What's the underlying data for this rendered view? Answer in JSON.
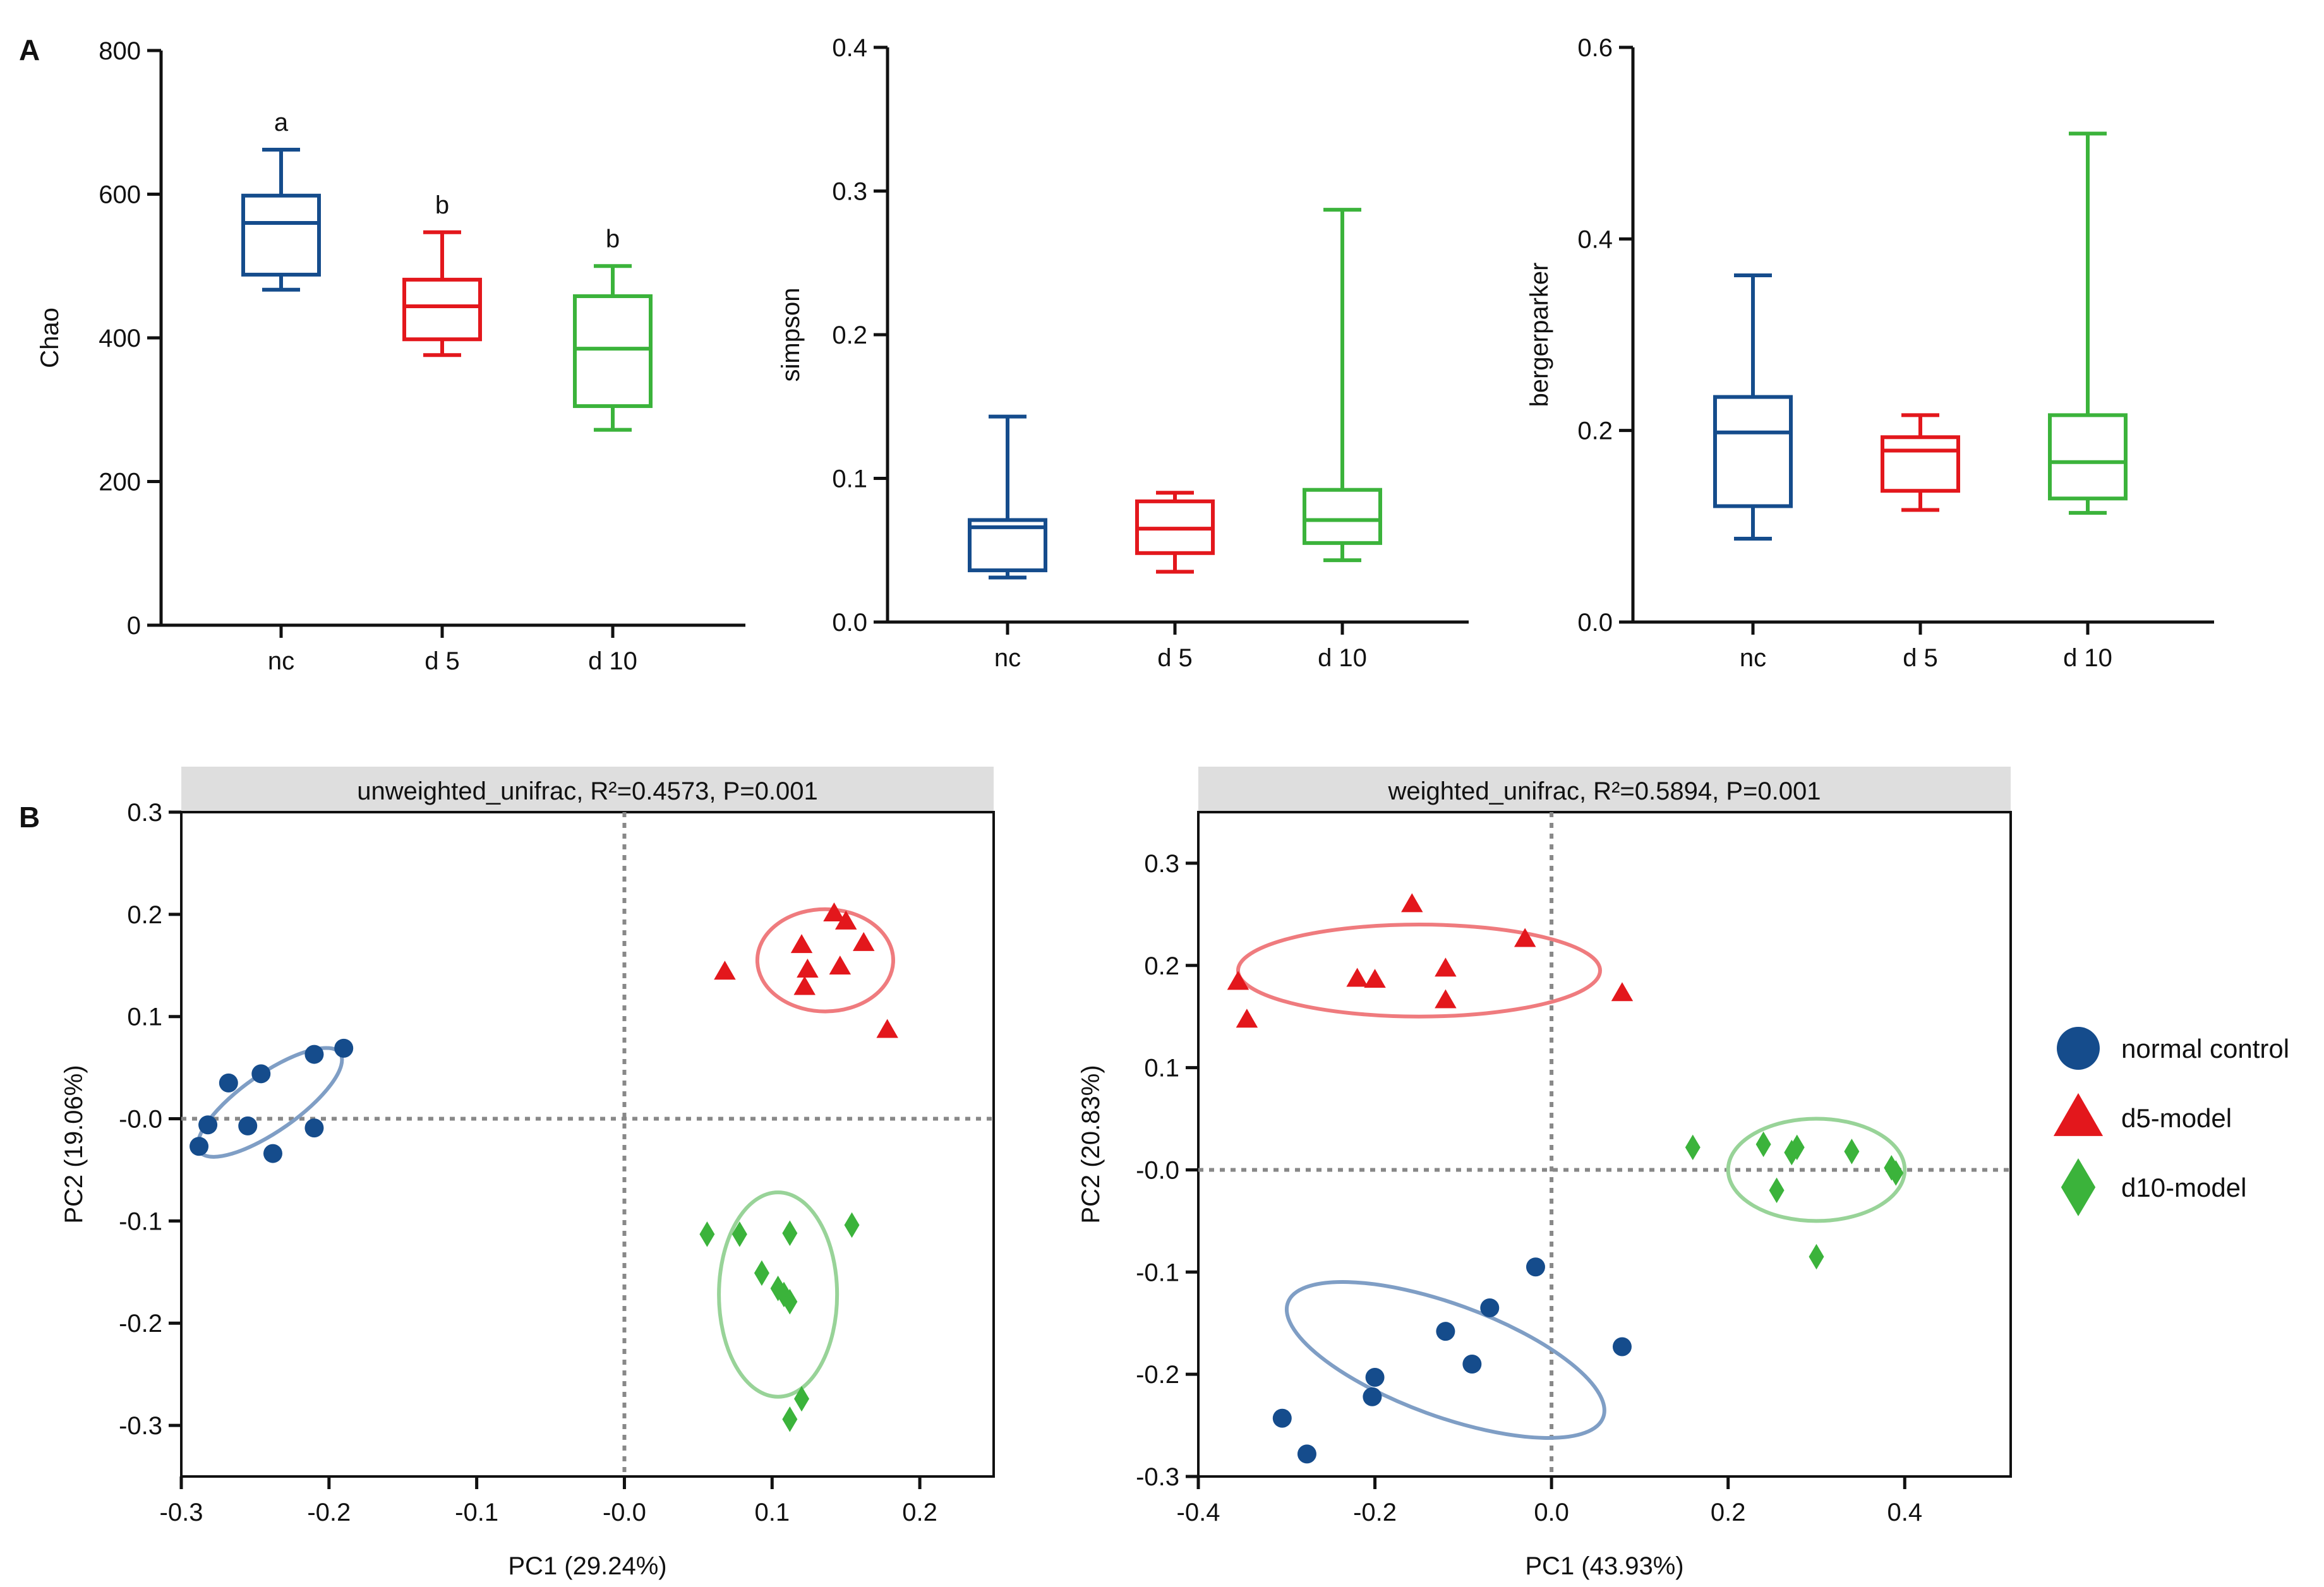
{
  "panel_labels": {
    "a": "A",
    "b": "B"
  },
  "colors": {
    "nc": "#154c8c",
    "d5": "#e3171c",
    "d10": "#3bb33b",
    "nc_ellipse": "#7f9ec5",
    "d5_ellipse": "#ef7b7e",
    "d10_ellipse": "#98d398"
  },
  "chart_data": [
    {
      "type": "box",
      "title": "",
      "ylabel": "Chao",
      "ylim": [
        0,
        800
      ],
      "yticks": [
        "0",
        "200",
        "400",
        "600",
        "800"
      ],
      "categories": [
        "nc",
        "d 5",
        "d 10"
      ],
      "boxes": [
        {
          "min": 467,
          "q1": 488,
          "median": 560,
          "q3": 598,
          "max": 662
        },
        {
          "min": 376,
          "q1": 398,
          "median": 444,
          "q3": 481,
          "max": 547
        },
        {
          "min": 272,
          "q1": 305,
          "median": 385,
          "q3": 458,
          "max": 500
        }
      ],
      "annotations": [
        "a",
        "b",
        "b"
      ]
    },
    {
      "type": "box",
      "title": "",
      "ylabel": "simpson",
      "ylim": [
        0,
        0.4
      ],
      "yticks": [
        "0.0",
        "0.1",
        "0.2",
        "0.3",
        "0.4"
      ],
      "categories": [
        "nc",
        "d 5",
        "d 10"
      ],
      "boxes": [
        {
          "min": 0.031,
          "q1": 0.036,
          "median": 0.066,
          "q3": 0.071,
          "max": 0.143
        },
        {
          "min": 0.035,
          "q1": 0.048,
          "median": 0.065,
          "q3": 0.084,
          "max": 0.09
        },
        {
          "min": 0.043,
          "q1": 0.055,
          "median": 0.071,
          "q3": 0.092,
          "max": 0.287
        }
      ],
      "annotations": [
        "",
        "",
        ""
      ]
    },
    {
      "type": "box",
      "title": "",
      "ylabel": "bergerparker",
      "ylim": [
        0,
        0.6
      ],
      "yticks": [
        "0.0",
        "0.2",
        "0.4",
        "0.6"
      ],
      "categories": [
        "nc",
        "d 5",
        "d 10"
      ],
      "boxes": [
        {
          "min": 0.087,
          "q1": 0.121,
          "median": 0.198,
          "q3": 0.235,
          "max": 0.362
        },
        {
          "min": 0.117,
          "q1": 0.137,
          "median": 0.179,
          "q3": 0.193,
          "max": 0.216
        },
        {
          "min": 0.114,
          "q1": 0.129,
          "median": 0.167,
          "q3": 0.216,
          "max": 0.51
        }
      ],
      "annotations": [
        "",
        "",
        ""
      ]
    },
    {
      "type": "scatter",
      "title": "unweighted_unifrac, R²=0.4573, P=0.001",
      "xlabel": "PC1 (29.24%)",
      "ylabel": "PC2 (19.06%)",
      "xlim": [
        -0.3,
        0.25
      ],
      "ylim": [
        -0.35,
        0.3
      ],
      "xticks": [
        "-0.3",
        "-0.2",
        "-0.1",
        "-0.0",
        "0.1",
        "0.2"
      ],
      "yticks": [
        "-0.3",
        "-0.2",
        "-0.1",
        "-0.0",
        "0.1",
        "0.2",
        "0.3"
      ],
      "series": [
        {
          "name": "normal control",
          "marker": "circle",
          "points": [
            [
              -0.288,
              -0.027
            ],
            [
              -0.282,
              -0.006
            ],
            [
              -0.268,
              0.035
            ],
            [
              -0.255,
              -0.007
            ],
            [
              -0.246,
              0.044
            ],
            [
              -0.238,
              -0.034
            ],
            [
              -0.21,
              0.063
            ],
            [
              -0.21,
              -0.009
            ],
            [
              -0.19,
              0.069
            ]
          ],
          "ellipse": {
            "cx": -0.24,
            "cy": 0.016,
            "rx": 0.058,
            "ry": 0.028,
            "angle_deg": 35
          }
        },
        {
          "name": "d5-model",
          "marker": "triangle",
          "points": [
            [
              0.068,
              0.144
            ],
            [
              0.12,
              0.17
            ],
            [
              0.122,
              0.129
            ],
            [
              0.124,
              0.146
            ],
            [
              0.142,
              0.201
            ],
            [
              0.15,
              0.193
            ],
            [
              0.146,
              0.149
            ],
            [
              0.162,
              0.172
            ],
            [
              0.178,
              0.087
            ]
          ],
          "ellipse": {
            "cx": 0.136,
            "cy": 0.155,
            "rx": 0.046,
            "ry": 0.05,
            "angle_deg": 0
          }
        },
        {
          "name": "d10-model",
          "marker": "diamond",
          "points": [
            [
              0.056,
              -0.113
            ],
            [
              0.078,
              -0.113
            ],
            [
              0.112,
              -0.112
            ],
            [
              0.154,
              -0.104
            ],
            [
              0.093,
              -0.151
            ],
            [
              0.104,
              -0.166
            ],
            [
              0.108,
              -0.172
            ],
            [
              0.112,
              -0.179
            ],
            [
              0.12,
              -0.274
            ],
            [
              0.112,
              -0.294
            ]
          ],
          "ellipse": {
            "cx": 0.104,
            "cy": -0.172,
            "rx": 0.04,
            "ry": 0.1,
            "angle_deg": 0
          }
        }
      ]
    },
    {
      "type": "scatter",
      "title": "weighted_unifrac, R²=0.5894, P=0.001",
      "xlabel": "PC1 (43.93%)",
      "ylabel": "PC2 (20.83%)",
      "xlim": [
        -0.4,
        0.52
      ],
      "ylim": [
        -0.3,
        0.35
      ],
      "xticks": [
        "-0.4",
        "-0.2",
        "0.0",
        "0.2",
        "0.4"
      ],
      "yticks": [
        "-0.3",
        "-0.2",
        "-0.1",
        "-0.0",
        "0.1",
        "0.2",
        "0.3"
      ],
      "series": [
        {
          "name": "normal control",
          "marker": "circle",
          "points": [
            [
              -0.305,
              -0.243
            ],
            [
              -0.277,
              -0.278
            ],
            [
              -0.203,
              -0.222
            ],
            [
              -0.2,
              -0.203
            ],
            [
              -0.12,
              -0.158
            ],
            [
              -0.09,
              -0.19
            ],
            [
              -0.07,
              -0.135
            ],
            [
              -0.018,
              -0.095
            ],
            [
              0.08,
              -0.173
            ]
          ],
          "ellipse": {
            "cx": -0.12,
            "cy": -0.186,
            "rx": 0.19,
            "ry": 0.055,
            "angle_deg": -20
          }
        },
        {
          "name": "d5-model",
          "marker": "triangle",
          "points": [
            [
              -0.355,
              0.184
            ],
            [
              -0.345,
              0.147
            ],
            [
              -0.158,
              0.26
            ],
            [
              -0.22,
              0.187
            ],
            [
              -0.2,
              0.186
            ],
            [
              -0.12,
              0.197
            ],
            [
              -0.12,
              0.166
            ],
            [
              -0.03,
              0.226
            ],
            [
              0.08,
              0.173
            ]
          ],
          "ellipse": {
            "cx": -0.15,
            "cy": 0.195,
            "rx": 0.205,
            "ry": 0.045,
            "angle_deg": 0
          }
        },
        {
          "name": "d10-model",
          "marker": "diamond",
          "points": [
            [
              0.16,
              0.022
            ],
            [
              0.24,
              0.025
            ],
            [
              0.255,
              -0.02
            ],
            [
              0.272,
              0.017
            ],
            [
              0.278,
              0.022
            ],
            [
              0.34,
              0.018
            ],
            [
              0.385,
              0.002
            ],
            [
              0.39,
              -0.003
            ],
            [
              0.3,
              -0.085
            ]
          ],
          "ellipse": {
            "cx": 0.3,
            "cy": 0.0,
            "rx": 0.1,
            "ry": 0.05,
            "angle_deg": 0
          }
        }
      ]
    }
  ],
  "legend": [
    {
      "label": "normal control",
      "marker": "circle",
      "color": "#154c8c"
    },
    {
      "label": "d5-model",
      "marker": "triangle",
      "color": "#e3171c"
    },
    {
      "label": "d10-model",
      "marker": "diamond",
      "color": "#3bb33b"
    }
  ]
}
